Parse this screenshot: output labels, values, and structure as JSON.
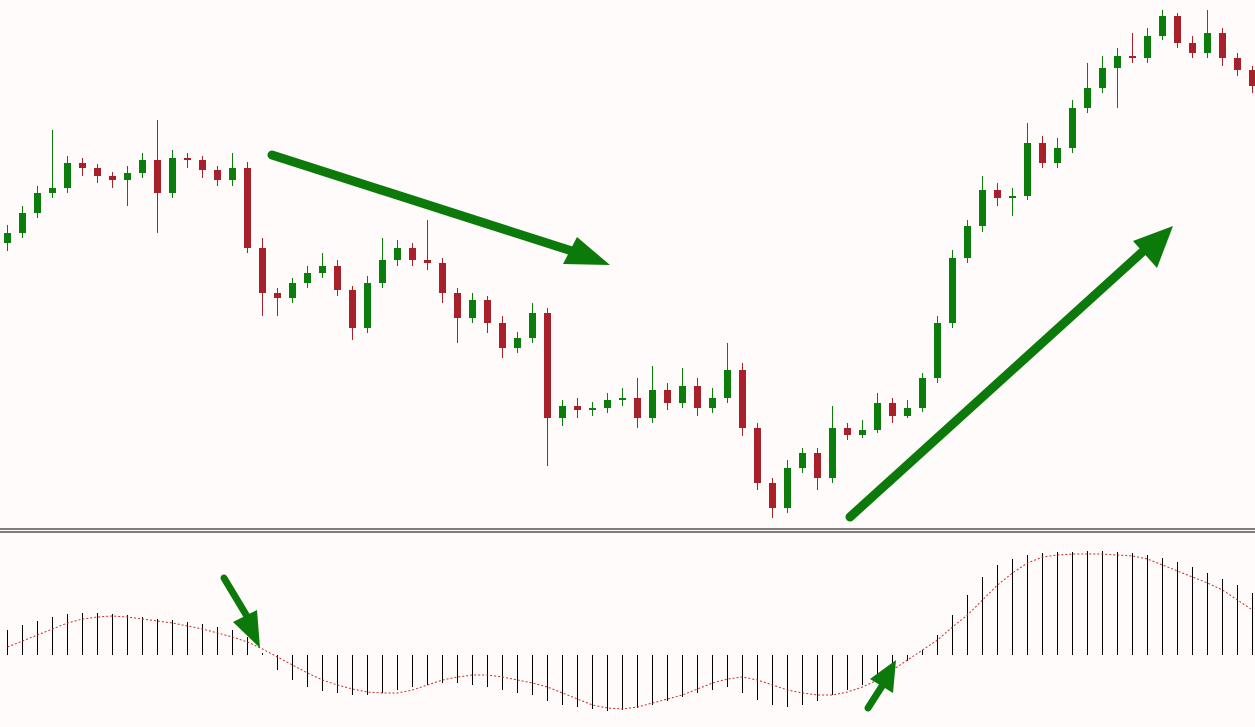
{
  "chart_data": [
    {
      "type": "candlestick",
      "ylim": [
        0,
        528
      ],
      "up_color": "#0a7d0a",
      "down_color": "#a8202a",
      "open": [
        285,
        295,
        315,
        335,
        340,
        365,
        360,
        352,
        348,
        355,
        368,
        335,
        370,
        368,
        358,
        348,
        360,
        280,
        235,
        230,
        245,
        255,
        262,
        238,
        200,
        245,
        268,
        280,
        268,
        265,
        235,
        210,
        228,
        205,
        180,
        190,
        215,
        110,
        122,
        118,
        120,
        128,
        130,
        110,
        138,
        125,
        142,
        120,
        130,
        158,
        100,
        45,
        20,
        60,
        75,
        50,
        100,
        93,
        98,
        125,
        112,
        120,
        150,
        205,
        270,
        302,
        338,
        330,
        332,
        385,
        365,
        380,
        420,
        440,
        460,
        472,
        470,
        492,
        512,
        485,
        475,
        495,
        470,
        458
      ],
      "high": [
        303,
        322,
        342,
        398,
        372,
        370,
        364,
        356,
        362,
        375,
        408,
        378,
        375,
        372,
        362,
        375,
        366,
        290,
        240,
        250,
        262,
        275,
        268,
        242,
        252,
        290,
        288,
        285,
        308,
        270,
        240,
        235,
        232,
        212,
        196,
        225,
        220,
        128,
        130,
        126,
        135,
        140,
        150,
        162,
        145,
        160,
        150,
        140,
        185,
        165,
        105,
        50,
        68,
        80,
        80,
        122,
        105,
        108,
        135,
        130,
        128,
        155,
        212,
        278,
        308,
        352,
        345,
        340,
        405,
        392,
        390,
        428,
        465,
        472,
        480,
        495,
        500,
        518,
        515,
        492,
        518,
        500,
        475,
        462
      ],
      "low": [
        277,
        290,
        310,
        330,
        335,
        352,
        345,
        340,
        322,
        350,
        295,
        330,
        360,
        350,
        342,
        342,
        275,
        212,
        212,
        225,
        240,
        250,
        232,
        188,
        195,
        240,
        262,
        262,
        258,
        225,
        185,
        205,
        195,
        170,
        175,
        185,
        62,
        102,
        110,
        112,
        115,
        122,
        100,
        105,
        118,
        120,
        112,
        115,
        125,
        92,
        38,
        10,
        15,
        55,
        38,
        45,
        88,
        90,
        95,
        105,
        110,
        116,
        145,
        200,
        265,
        296,
        322,
        312,
        328,
        360,
        360,
        375,
        415,
        435,
        420,
        465,
        465,
        488,
        480,
        470,
        470,
        462,
        452,
        435
      ],
      "close": [
        295,
        315,
        335,
        340,
        365,
        360,
        352,
        348,
        355,
        368,
        335,
        370,
        368,
        358,
        348,
        360,
        280,
        235,
        230,
        245,
        255,
        262,
        238,
        200,
        245,
        268,
        280,
        268,
        265,
        235,
        210,
        228,
        205,
        180,
        190,
        215,
        110,
        122,
        118,
        120,
        128,
        130,
        110,
        138,
        125,
        142,
        120,
        130,
        158,
        100,
        45,
        20,
        60,
        75,
        50,
        100,
        93,
        98,
        125,
        112,
        120,
        150,
        205,
        270,
        302,
        338,
        330,
        332,
        385,
        365,
        380,
        420,
        440,
        460,
        472,
        470,
        492,
        512,
        485,
        475,
        495,
        470,
        458,
        442
      ]
    },
    {
      "type": "macd",
      "ylim": [
        -72,
        122
      ],
      "hist_color": "#000000",
      "signal_color": "#c0302a",
      "histogram": [
        25,
        30,
        34,
        38,
        41,
        42,
        42,
        41,
        40,
        38,
        36,
        35,
        33,
        31,
        28,
        25,
        18,
        2,
        -15,
        -25,
        -32,
        -36,
        -38,
        -40,
        -40,
        -38,
        -35,
        -32,
        -30,
        -28,
        -28,
        -30,
        -32,
        -35,
        -38,
        -40,
        -46,
        -50,
        -52,
        -54,
        -56,
        -55,
        -53,
        -50,
        -46,
        -42,
        -38,
        -35,
        -32,
        -38,
        -45,
        -50,
        -52,
        -50,
        -46,
        -40,
        -35,
        -30,
        -24,
        -15,
        -6,
        5,
        20,
        40,
        60,
        78,
        90,
        96,
        100,
        102,
        103,
        103,
        104,
        104,
        103,
        102,
        100,
        97,
        93,
        88,
        82,
        76,
        70,
        62
      ],
      "signal": [
        8,
        14,
        20,
        26,
        32,
        36,
        38,
        39,
        38,
        36,
        34,
        32,
        29,
        26,
        22,
        18,
        13,
        6,
        -2,
        -10,
        -18,
        -25,
        -30,
        -34,
        -37,
        -38,
        -38,
        -35,
        -30,
        -25,
        -22,
        -20,
        -20,
        -22,
        -25,
        -28,
        -32,
        -38,
        -44,
        -50,
        -53,
        -54,
        -52,
        -48,
        -44,
        -40,
        -34,
        -28,
        -24,
        -22,
        -25,
        -30,
        -35,
        -38,
        -40,
        -40,
        -37,
        -32,
        -25,
        -15,
        -5,
        5,
        15,
        28,
        40,
        55,
        70,
        82,
        92,
        98,
        100,
        101,
        101,
        101,
        100,
        99,
        96,
        90,
        84,
        78,
        72,
        65,
        55,
        45
      ]
    }
  ]
}
